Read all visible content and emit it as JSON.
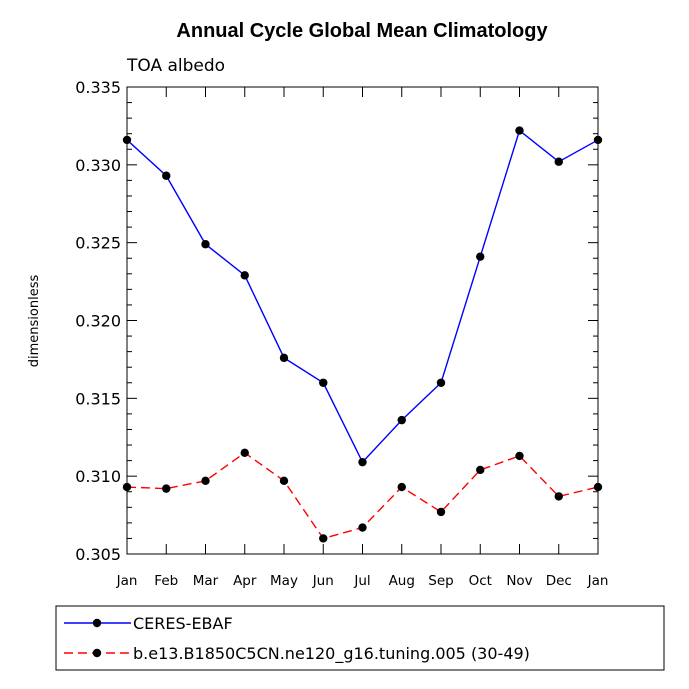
{
  "chart_data": {
    "type": "line",
    "title": "Annual Cycle Global Mean Climatology",
    "subtitle": "TOA albedo",
    "xlabel": "",
    "ylabel": "dimensionless",
    "categories": [
      "Jan",
      "Feb",
      "Mar",
      "Apr",
      "May",
      "Jun",
      "Jul",
      "Aug",
      "Sep",
      "Oct",
      "Nov",
      "Dec",
      "Jan"
    ],
    "ylim": [
      0.305,
      0.335
    ],
    "yticks": [
      "0.305",
      "0.310",
      "0.315",
      "0.320",
      "0.325",
      "0.330",
      "0.335"
    ],
    "ytick_values": [
      0.305,
      0.31,
      0.315,
      0.32,
      0.325,
      0.33,
      0.335
    ],
    "grid": false,
    "legend_position": "bottom",
    "series": [
      {
        "name": "CERES-EBAF",
        "color": "#0000ff",
        "style": "solid",
        "values": [
          0.3316,
          0.3293,
          0.3249,
          0.3229,
          0.3176,
          0.316,
          0.3109,
          0.3136,
          0.316,
          0.3241,
          0.3322,
          0.3302,
          0.3316
        ]
      },
      {
        "name": "b.e13.B1850C5CN.ne120_g16.tuning.005 (30-49)",
        "color": "#ff0000",
        "style": "dashed",
        "values": [
          0.3093,
          0.3092,
          0.3097,
          0.3115,
          0.3097,
          0.306,
          0.3067,
          0.3093,
          0.3077,
          0.3104,
          0.3113,
          0.3087,
          0.3093
        ]
      }
    ]
  }
}
